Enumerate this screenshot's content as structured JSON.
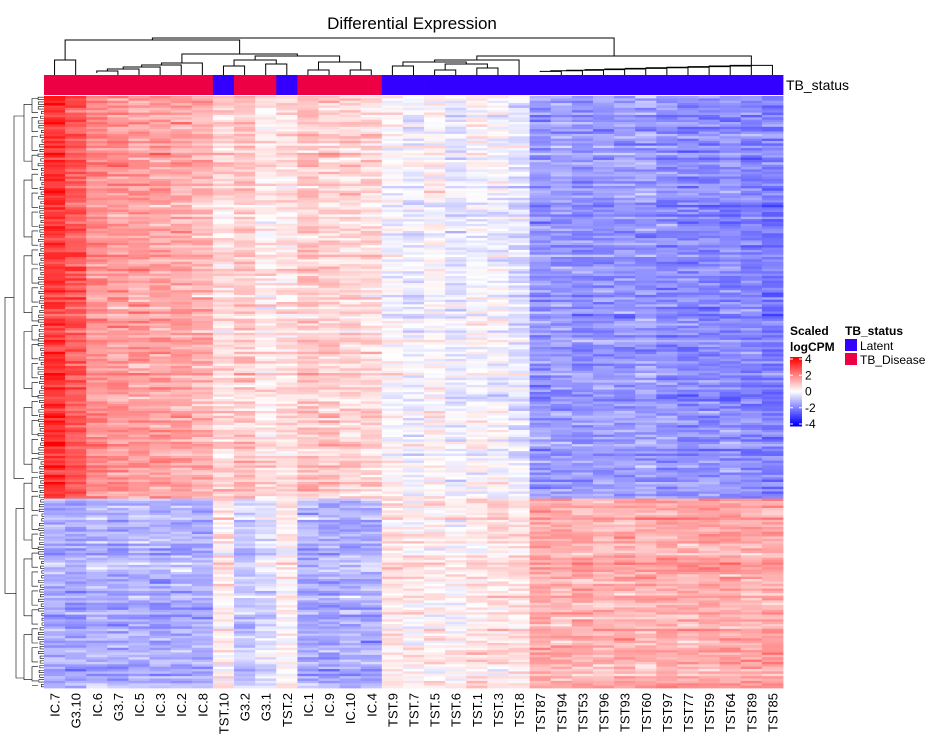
{
  "chart_data": {
    "type": "heatmap",
    "title": "Differential Expression",
    "samples": [
      "IC.7",
      "G3.10",
      "IC.6",
      "G3.7",
      "IC.5",
      "IC.3",
      "IC.2",
      "IC.8",
      "TST.10",
      "G3.2",
      "G3.1",
      "TST.2",
      "IC.1",
      "IC.9",
      "IC.10",
      "IC.4",
      "TST.9",
      "TST.7",
      "TST.5",
      "TST.6",
      "TST.1",
      "TST.3",
      "TST.8",
      "TST87",
      "TST94",
      "TST53",
      "TST96",
      "TST93",
      "TST60",
      "TST97",
      "TST77",
      "TST59",
      "TST64",
      "TST89",
      "TST85"
    ],
    "annotation_name": "TB_status",
    "annotation": [
      "TB_Disease",
      "TB_Disease",
      "TB_Disease",
      "TB_Disease",
      "TB_Disease",
      "TB_Disease",
      "TB_Disease",
      "TB_Disease",
      "Latent",
      "TB_Disease",
      "TB_Disease",
      "Latent",
      "TB_Disease",
      "TB_Disease",
      "TB_Disease",
      "TB_Disease",
      "Latent",
      "Latent",
      "Latent",
      "Latent",
      "Latent",
      "Latent",
      "Latent",
      "Latent",
      "Latent",
      "Latent",
      "Latent",
      "Latent",
      "Latent",
      "Latent",
      "Latent",
      "Latent",
      "Latent",
      "Latent",
      "Latent"
    ],
    "n_genes": 250,
    "gene_clusters": [
      {
        "n_genes": 170,
        "column_means": [
          3.2,
          2.6,
          1.8,
          1.6,
          1.5,
          1.5,
          1.4,
          1.2,
          0.6,
          0.9,
          0.4,
          0.5,
          0.9,
          0.8,
          0.7,
          0.6,
          0.0,
          -0.2,
          0.1,
          -0.3,
          0.0,
          -0.1,
          -0.4,
          -1.6,
          -1.5,
          -1.7,
          -1.6,
          -1.6,
          -1.5,
          -1.7,
          -1.8,
          -1.8,
          -1.7,
          -1.9,
          -2.0
        ]
      },
      {
        "n_genes": 80,
        "column_means": [
          -1.3,
          -1.4,
          -1.2,
          -1.3,
          -1.2,
          -1.3,
          -1.2,
          -1.3,
          0.3,
          -0.8,
          -0.6,
          0.2,
          -1.2,
          -1.3,
          -1.3,
          -1.2,
          0.4,
          0.2,
          0.3,
          0.1,
          0.4,
          0.5,
          0.5,
          1.4,
          1.2,
          1.3,
          1.2,
          1.3,
          1.2,
          1.4,
          1.3,
          1.4,
          1.4,
          1.3,
          1.4
        ]
      }
    ],
    "color_scale": {
      "min": -4,
      "max": 4,
      "low": "#0000ff",
      "mid": "#ffffff",
      "high": "#ff0000"
    },
    "legend_heatmap": {
      "title_line1": "Scaled",
      "title_line2": "logCPM",
      "ticks": [
        "4",
        "2",
        "0",
        "-2",
        "-4"
      ]
    },
    "legend_annotation": {
      "title": "TB_status",
      "items": [
        {
          "label": "Latent",
          "color": "#3300ff"
        },
        {
          "label": "TB_Disease",
          "color": "#ee0044"
        }
      ]
    },
    "annotation_colors": {
      "Latent": "#3300ff",
      "TB_Disease": "#ee0044"
    },
    "row_dendrogram": true,
    "column_dendrogram": true
  }
}
